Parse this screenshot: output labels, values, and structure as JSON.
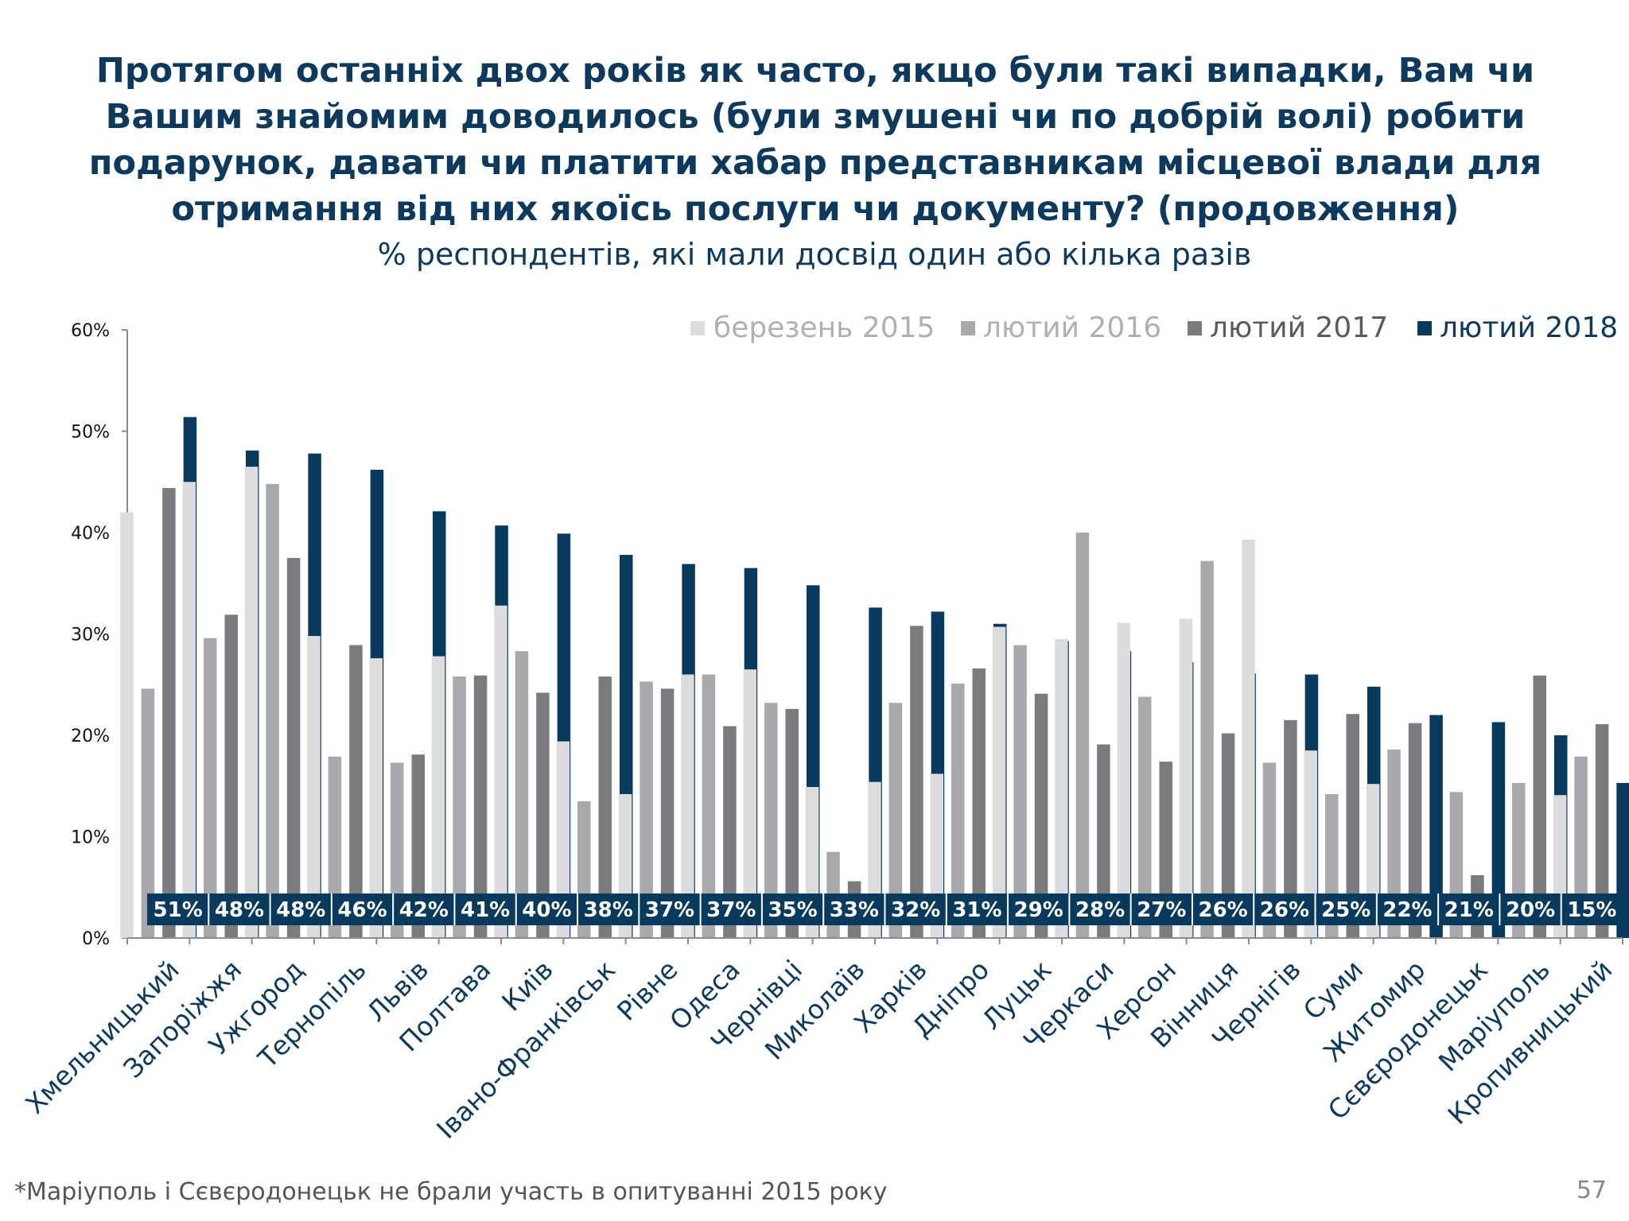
{
  "slide": {
    "title": "Протягом останніх двох років як часто, якщо були такі випадки, Вам чи Вашим знайомим доводилось (були змушені чи по добрій волі) робити подарунок, давати чи платити хабар представникам місцевої влади для отримання від них якоїсь послуги чи документу? (продовження)",
    "subtitle": "% респондентів, які мали досвід один або кілька разів",
    "footnote": "*Маріуполь і Сєвєродонецьк не брали участь в опитуванні 2015 року",
    "page_number": "57"
  },
  "chart_data": {
    "type": "bar",
    "title": "",
    "xlabel": "",
    "ylabel": "",
    "ylim": [
      0,
      60
    ],
    "yticks": [
      "0%",
      "10%",
      "20%",
      "30%",
      "40%",
      "50%",
      "60%"
    ],
    "legend_position": "top-right",
    "categories": [
      "Хмельницький",
      "Запоріжжя",
      "Ужгород",
      "Тернопіль",
      "Львів",
      "Полтава",
      "Київ",
      "Івано-Франківськ",
      "Рівне",
      "Одеса",
      "Чернівці",
      "Миколаїв",
      "Харків",
      "Дніпро",
      "Луцьк",
      "Черкаси",
      "Херсон",
      "Вінниця",
      "Чернігів",
      "Суми",
      "Житомир",
      "Сєвєродонецьк",
      "Маріуполь",
      "Кропивницький"
    ],
    "series": [
      {
        "name": "березень 2015",
        "color": "#dcdcdf",
        "values": [
          42,
          45,
          46.5,
          29.8,
          27.6,
          27.8,
          32.8,
          19.4,
          14.2,
          26,
          26.5,
          14.9,
          15.4,
          16.2,
          30.7,
          29.5,
          31.1,
          31.5,
          39.3,
          18.5,
          15.2,
          null,
          null,
          14.1
        ]
      },
      {
        "name": "лютий 2016",
        "color": "#a9a9ad",
        "values": [
          24.6,
          29.6,
          44.8,
          17.9,
          17.3,
          25.8,
          28.3,
          13.5,
          25.3,
          26,
          23.2,
          8.5,
          23.2,
          25.1,
          28.9,
          40,
          23.8,
          37.2,
          17.3,
          14.2,
          18.6,
          14.4,
          15.3,
          17.9
        ]
      },
      {
        "name": "лютий 2017",
        "color": "#7b7b7f",
        "values": [
          44.4,
          31.9,
          37.5,
          28.9,
          18.1,
          25.9,
          24.2,
          25.8,
          24.6,
          20.9,
          22.6,
          5.6,
          30.8,
          26.6,
          24.1,
          19.1,
          17.4,
          20.2,
          21.5,
          22.1,
          21.2,
          6.2,
          25.9,
          21.1
        ]
      },
      {
        "name": "лютий 2018",
        "color": "#083a5e",
        "values": [
          51.4,
          48.1,
          47.8,
          46.2,
          42.1,
          40.7,
          39.9,
          37.8,
          36.9,
          36.5,
          34.8,
          32.6,
          32.2,
          31,
          29.3,
          28.3,
          27.2,
          26.1,
          26,
          24.8,
          22,
          21.3,
          20,
          15.3
        ]
      }
    ],
    "data_labels": [
      "51%",
      "48%",
      "48%",
      "46%",
      "42%",
      "41%",
      "40%",
      "38%",
      "37%",
      "37%",
      "35%",
      "33%",
      "32%",
      "31%",
      "29%",
      "28%",
      "27%",
      "26%",
      "26%",
      "25%",
      "22%",
      "21%",
      "20%",
      "15%"
    ]
  }
}
